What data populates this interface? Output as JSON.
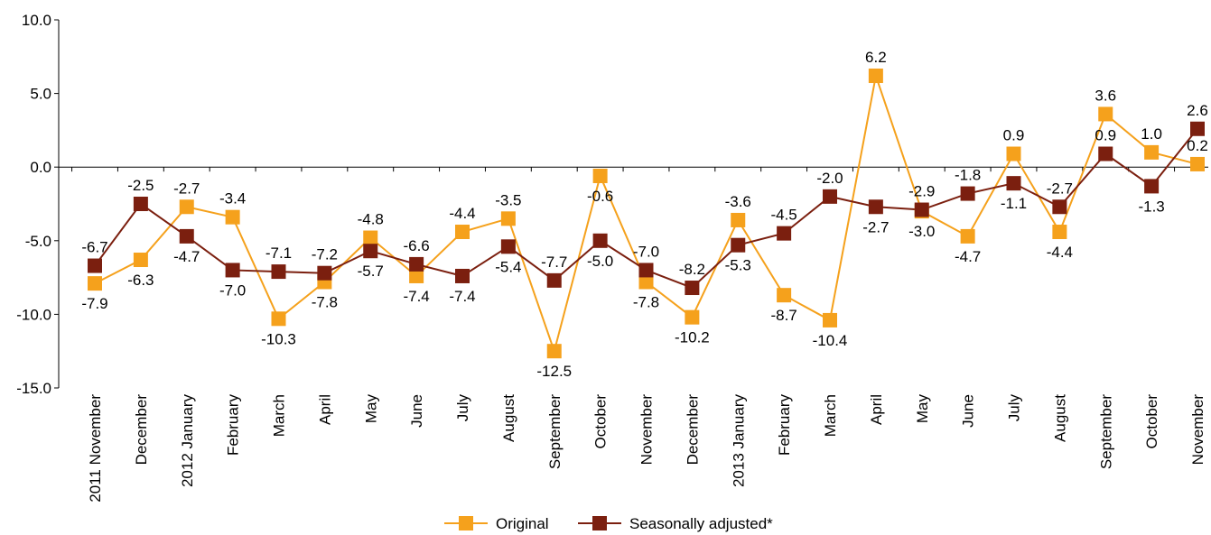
{
  "chart_data": {
    "type": "line",
    "title": "",
    "xlabel": "",
    "ylabel": "",
    "ylim": [
      -15,
      10
    ],
    "yticks": [
      "10.0",
      "5.0",
      "0.0",
      "-5.0",
      "-10.0",
      "-15.0"
    ],
    "ytick_values": [
      10,
      5,
      0,
      -5,
      -10,
      -15
    ],
    "grid": false,
    "legend_position": "bottom",
    "categories": [
      "2011 November",
      "December",
      "2012 January",
      "February",
      "March",
      "April",
      "May",
      "June",
      "July",
      "August",
      "September",
      "October",
      "November",
      "December",
      "2013 January",
      "February",
      "March",
      "April",
      "May",
      "June",
      "July",
      "August",
      "September",
      "October",
      "November"
    ],
    "series": [
      {
        "name": "Original",
        "color": "#F5A11C",
        "values": [
          -7.9,
          -6.3,
          -2.7,
          -3.4,
          -10.3,
          -7.8,
          -4.8,
          -7.4,
          -4.4,
          -3.5,
          -12.5,
          -0.6,
          -7.8,
          -10.2,
          -3.6,
          -8.7,
          -10.4,
          6.2,
          -3.0,
          -4.7,
          0.9,
          -4.4,
          3.6,
          1.0,
          0.2
        ],
        "labels": [
          "-7.9",
          "-6.3",
          "-2.7",
          "-3.4",
          "-10.3",
          "-7.8",
          "-4.8",
          "-7.4",
          "-4.4",
          "-3.5",
          "-12.5",
          "-0.6",
          "-7.8",
          "-10.2",
          "-3.6",
          "-8.7",
          "-10.4",
          "6.2",
          "-3.0",
          "-4.7",
          "0.9",
          "-4.4",
          "3.6",
          "1.0",
          "0.2"
        ]
      },
      {
        "name": "Seasonally adjusted*",
        "color": "#7B1F0F",
        "values": [
          -6.7,
          -2.5,
          -4.7,
          -7.0,
          -7.1,
          -7.2,
          -5.7,
          -6.6,
          -7.4,
          -5.4,
          -7.7,
          -5.0,
          -7.0,
          -8.2,
          -5.3,
          -4.5,
          -2.0,
          -2.7,
          -2.9,
          -1.8,
          -1.1,
          -2.7,
          0.9,
          -1.3,
          2.6
        ],
        "labels": [
          "-6.7",
          "-2.5",
          "-4.7",
          "-7.0",
          "-7.1",
          "-7.2",
          "-5.7",
          "-6.6",
          "-7.4",
          "-5.4",
          "-7.7",
          "-5.0",
          "-7.0",
          "-8.2",
          "-5.3",
          "-4.5",
          "-2.0",
          "-2.7",
          "-2.9",
          "-1.8",
          "-1.1",
          "-2.7",
          "0.9",
          "-1.3",
          "2.6"
        ]
      }
    ]
  }
}
